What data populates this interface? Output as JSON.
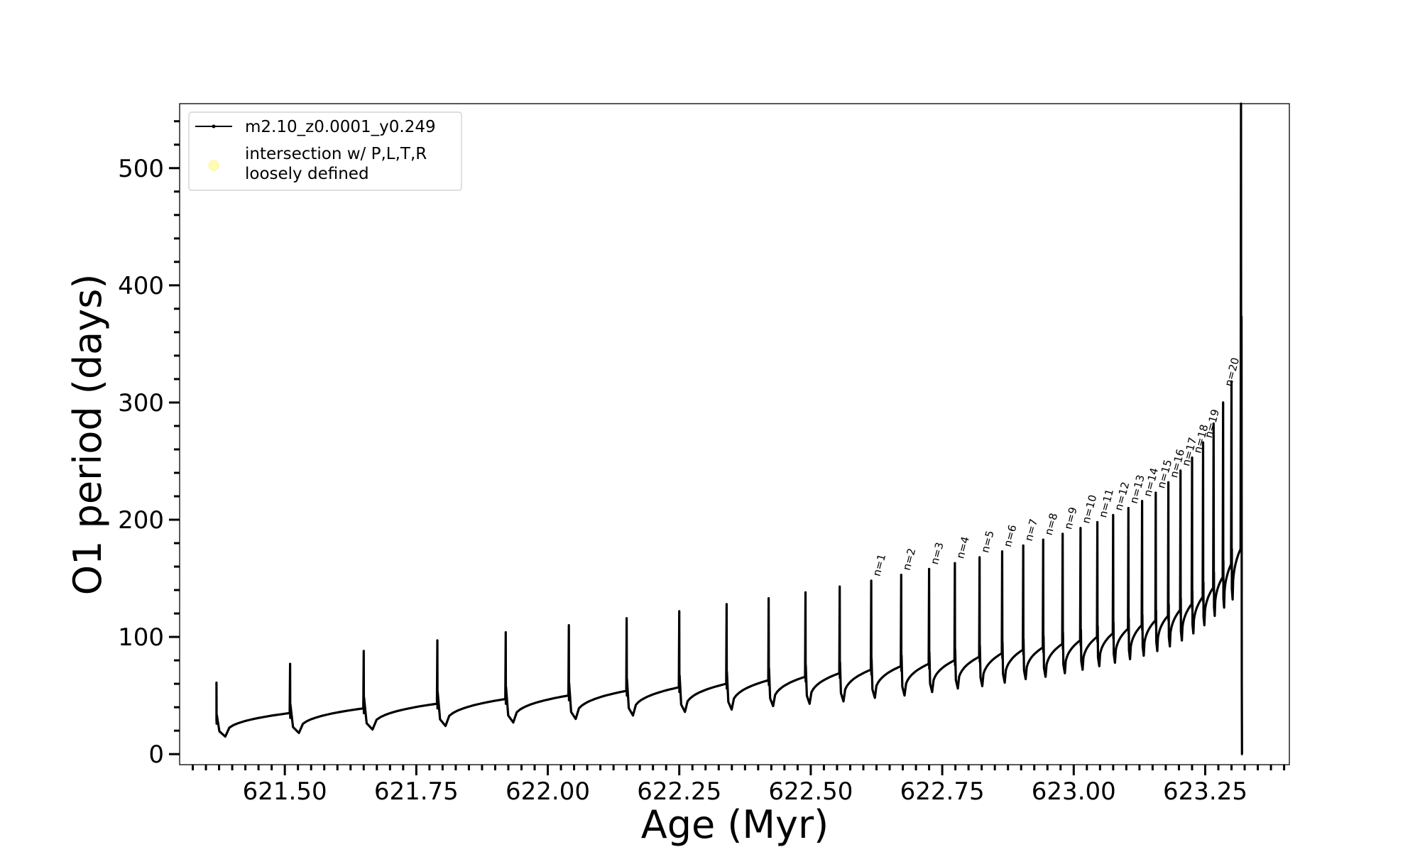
{
  "chart_data": {
    "type": "line",
    "xlabel": "Age (Myr)",
    "ylabel": "O1 period (days)",
    "xlim": [
      621.3,
      623.41
    ],
    "ylim": [
      -9,
      555
    ],
    "x_ticks": [
      621.5,
      621.75,
      622.0,
      622.25,
      622.5,
      622.75,
      623.0,
      623.25
    ],
    "x_tick_labels": [
      "621.50",
      "621.75",
      "622.00",
      "622.25",
      "622.50",
      "622.75",
      "623.00",
      "623.25"
    ],
    "y_ticks": [
      0,
      100,
      200,
      300,
      400,
      500
    ],
    "y_tick_labels": [
      "0",
      "100",
      "200",
      "300",
      "400",
      "500"
    ],
    "legend": {
      "placement": "top-left",
      "entries": [
        {
          "label": "m2.10_z0.0001_y0.249",
          "marker": "line-dot",
          "color": "#000000"
        },
        {
          "label_lines": [
            "intersection w/ P,L,T,R",
            "loosely defined"
          ],
          "marker": "circle",
          "color": "#fffbb0"
        }
      ]
    },
    "series": [
      {
        "name": "m2.10_z0.0001_y0.249",
        "color": "#000000",
        "start": {
          "x": 621.37,
          "y": 28
        },
        "pulses": [
          {
            "x": 621.37,
            "peak": 61,
            "pre": 30,
            "min": 15
          },
          {
            "x": 621.51,
            "peak": 77,
            "pre": 35,
            "min": 18
          },
          {
            "x": 621.65,
            "peak": 88,
            "pre": 39,
            "min": 21
          },
          {
            "x": 621.79,
            "peak": 97,
            "pre": 43,
            "min": 24
          },
          {
            "x": 621.92,
            "peak": 104,
            "pre": 47,
            "min": 27
          },
          {
            "x": 622.04,
            "peak": 110,
            "pre": 50,
            "min": 30
          },
          {
            "x": 622.15,
            "peak": 116,
            "pre": 54,
            "min": 33
          },
          {
            "x": 622.25,
            "peak": 122,
            "pre": 57,
            "min": 36
          },
          {
            "x": 622.34,
            "peak": 128,
            "pre": 60,
            "min": 38
          },
          {
            "x": 622.42,
            "peak": 133,
            "pre": 63,
            "min": 41
          },
          {
            "x": 622.49,
            "peak": 138,
            "pre": 66,
            "min": 43
          },
          {
            "x": 622.555,
            "peak": 143,
            "pre": 69,
            "min": 45
          },
          {
            "x": 622.615,
            "peak": 148,
            "pre": 72,
            "min": 48
          },
          {
            "x": 622.672,
            "peak": 153,
            "pre": 75,
            "min": 50
          },
          {
            "x": 622.725,
            "peak": 158,
            "pre": 77,
            "min": 53
          },
          {
            "x": 622.774,
            "peak": 163,
            "pre": 80,
            "min": 56
          },
          {
            "x": 622.821,
            "peak": 168,
            "pre": 83,
            "min": 58
          },
          {
            "x": 622.864,
            "peak": 173,
            "pre": 86,
            "min": 61
          },
          {
            "x": 622.904,
            "peak": 178,
            "pre": 89,
            "min": 64
          },
          {
            "x": 622.942,
            "peak": 183,
            "pre": 91,
            "min": 66
          },
          {
            "x": 622.979,
            "peak": 188,
            "pre": 94,
            "min": 69
          },
          {
            "x": 623.013,
            "peak": 193,
            "pre": 97,
            "min": 72
          },
          {
            "x": 623.045,
            "peak": 198,
            "pre": 100,
            "min": 75
          },
          {
            "x": 623.075,
            "peak": 204,
            "pre": 103,
            "min": 78
          },
          {
            "x": 623.104,
            "peak": 210,
            "pre": 107,
            "min": 81
          },
          {
            "x": 623.13,
            "peak": 216,
            "pre": 110,
            "min": 84
          },
          {
            "x": 623.156,
            "peak": 223,
            "pre": 114,
            "min": 88
          },
          {
            "x": 623.18,
            "peak": 232,
            "pre": 118,
            "min": 92
          },
          {
            "x": 623.203,
            "peak": 242,
            "pre": 123,
            "min": 97
          },
          {
            "x": 623.225,
            "peak": 253,
            "pre": 128,
            "min": 103
          },
          {
            "x": 623.246,
            "peak": 266,
            "pre": 134,
            "min": 110
          },
          {
            "x": 623.266,
            "peak": 282,
            "pre": 142,
            "min": 118
          },
          {
            "x": 623.284,
            "peak": 300,
            "pre": 151,
            "min": 125
          },
          {
            "x": 623.3,
            "peak": 318,
            "pre": 162,
            "min": 132
          }
        ],
        "final": {
          "x": 623.318,
          "pre": 175,
          "top": 555,
          "spike2": 373,
          "low": 0
        }
      }
    ],
    "annotations": [
      {
        "text": "n=1",
        "x": 622.615,
        "y": 150
      },
      {
        "text": "n=2",
        "x": 622.672,
        "y": 155
      },
      {
        "text": "n=3",
        "x": 622.725,
        "y": 160
      },
      {
        "text": "n=4",
        "x": 622.774,
        "y": 165
      },
      {
        "text": "n=5",
        "x": 622.821,
        "y": 170
      },
      {
        "text": "n=6",
        "x": 622.864,
        "y": 175
      },
      {
        "text": "n=7",
        "x": 622.904,
        "y": 180
      },
      {
        "text": "n=8",
        "x": 622.942,
        "y": 185
      },
      {
        "text": "n=9",
        "x": 622.979,
        "y": 190
      },
      {
        "text": "n=10",
        "x": 623.013,
        "y": 195
      },
      {
        "text": "n=11",
        "x": 623.045,
        "y": 200
      },
      {
        "text": "n=12",
        "x": 623.075,
        "y": 206
      },
      {
        "text": "n=13",
        "x": 623.104,
        "y": 212
      },
      {
        "text": "n=14",
        "x": 623.13,
        "y": 218
      },
      {
        "text": "n=15",
        "x": 623.156,
        "y": 225
      },
      {
        "text": "n=16",
        "x": 623.18,
        "y": 234
      },
      {
        "text": "n=17",
        "x": 623.203,
        "y": 244
      },
      {
        "text": "n=18",
        "x": 623.225,
        "y": 255
      },
      {
        "text": "n=19",
        "x": 623.246,
        "y": 268
      },
      {
        "text": "n=20",
        "x": 623.284,
        "y": 312
      }
    ],
    "grid": false
  }
}
